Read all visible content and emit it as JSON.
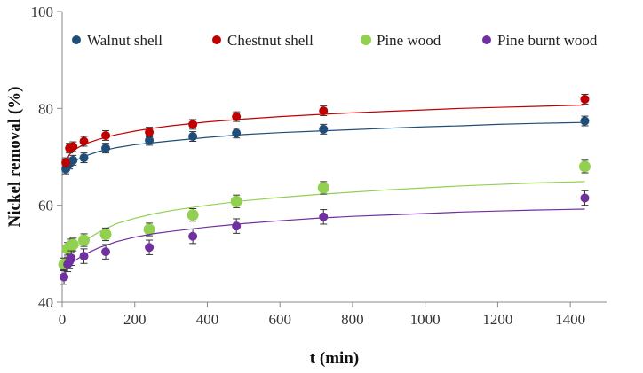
{
  "chart_data": {
    "type": "scatter",
    "title": "",
    "xlabel": "t (min)",
    "ylabel": "Nickel removal (%)",
    "xlim": [
      0,
      1500
    ],
    "ylim": [
      40,
      100
    ],
    "xticks": [
      0,
      200,
      400,
      600,
      800,
      1000,
      1200,
      1400
    ],
    "yticks": [
      40,
      60,
      80,
      100
    ],
    "grid": false,
    "legend_position": "top",
    "series": [
      {
        "name": "Walnut shell",
        "color": "#1f4e79",
        "x": [
          10,
          20,
          30,
          60,
          120,
          240,
          360,
          480,
          720,
          1440
        ],
        "y": [
          67.5,
          68.5,
          69.3,
          69.8,
          71.8,
          73.4,
          74.2,
          74.9,
          75.7,
          77.4
        ],
        "err": [
          1.0,
          1.0,
          1.0,
          1.0,
          1.0,
          1.0,
          1.0,
          1.0,
          1.0,
          1.0
        ],
        "fit_x": [
          10,
          20,
          30,
          60,
          100,
          150,
          200,
          250,
          300,
          400,
          500,
          600,
          700,
          800,
          900,
          1000,
          1100,
          1200,
          1300,
          1440
        ],
        "fit_y": [
          67.6,
          68.4,
          69.0,
          70.1,
          71.1,
          71.9,
          72.5,
          72.9,
          73.3,
          74.0,
          74.6,
          75.0,
          75.3,
          75.6,
          75.9,
          76.2,
          76.4,
          76.7,
          76.9,
          77.1
        ]
      },
      {
        "name": "Chestnut shell",
        "color": "#c00000",
        "x": [
          10,
          20,
          30,
          60,
          120,
          240,
          360,
          480,
          720,
          1440
        ],
        "y": [
          68.8,
          71.8,
          72.1,
          73.2,
          74.4,
          75.1,
          76.7,
          78.3,
          79.5,
          81.9
        ],
        "err": [
          1.0,
          1.0,
          1.0,
          1.0,
          1.0,
          1.0,
          1.0,
          1.0,
          1.0,
          1.0
        ],
        "fit_x": [
          10,
          20,
          30,
          60,
          100,
          150,
          200,
          250,
          300,
          400,
          500,
          600,
          700,
          800,
          900,
          1000,
          1100,
          1200,
          1300,
          1440
        ],
        "fit_y": [
          69.0,
          70.5,
          71.3,
          72.6,
          73.6,
          74.6,
          75.3,
          75.9,
          76.4,
          77.2,
          77.8,
          78.3,
          78.7,
          79.1,
          79.4,
          79.7,
          80.0,
          80.2,
          80.4,
          80.7
        ]
      },
      {
        "name": "Pine wood",
        "color": "#92d050",
        "x": [
          5,
          15,
          25,
          30,
          60,
          120,
          240,
          360,
          480,
          720,
          1440
        ],
        "y": [
          47.8,
          51.0,
          51.7,
          51.9,
          52.8,
          54.0,
          55.0,
          58.0,
          60.8,
          63.6,
          68.0
        ],
        "err": [
          1.3,
          1.3,
          1.3,
          1.3,
          1.3,
          1.3,
          1.3,
          1.3,
          1.3,
          1.3,
          1.3
        ],
        "fit_x": [
          5,
          10,
          20,
          30,
          60,
          100,
          150,
          200,
          250,
          300,
          400,
          500,
          600,
          700,
          800,
          900,
          1000,
          1100,
          1200,
          1300,
          1440
        ],
        "fit_y": [
          47.8,
          48.6,
          49.8,
          50.7,
          52.6,
          54.4,
          56.2,
          57.3,
          58.2,
          58.9,
          60.0,
          60.9,
          61.6,
          62.2,
          62.7,
          63.2,
          63.6,
          64.0,
          64.3,
          64.6,
          64.9
        ]
      },
      {
        "name": "Pine burnt wood",
        "color": "#7030a0",
        "x": [
          5,
          15,
          20,
          25,
          60,
          120,
          240,
          360,
          480,
          720,
          1440
        ],
        "y": [
          45.2,
          47.8,
          48.4,
          49.1,
          49.5,
          50.4,
          51.3,
          53.6,
          55.7,
          57.6,
          61.5
        ],
        "err": [
          1.5,
          1.5,
          1.5,
          1.5,
          1.5,
          1.5,
          1.5,
          1.5,
          1.5,
          1.5,
          1.5
        ],
        "fit_x": [
          5,
          10,
          20,
          30,
          60,
          100,
          150,
          200,
          250,
          300,
          400,
          500,
          600,
          700,
          800,
          900,
          1000,
          1100,
          1200,
          1300,
          1440
        ],
        "fit_y": [
          45.5,
          46.3,
          47.5,
          48.3,
          49.8,
          51.2,
          52.5,
          53.4,
          54.1,
          54.6,
          55.5,
          56.2,
          56.8,
          57.3,
          57.7,
          58.0,
          58.3,
          58.6,
          58.8,
          59.0,
          59.2
        ]
      }
    ]
  }
}
